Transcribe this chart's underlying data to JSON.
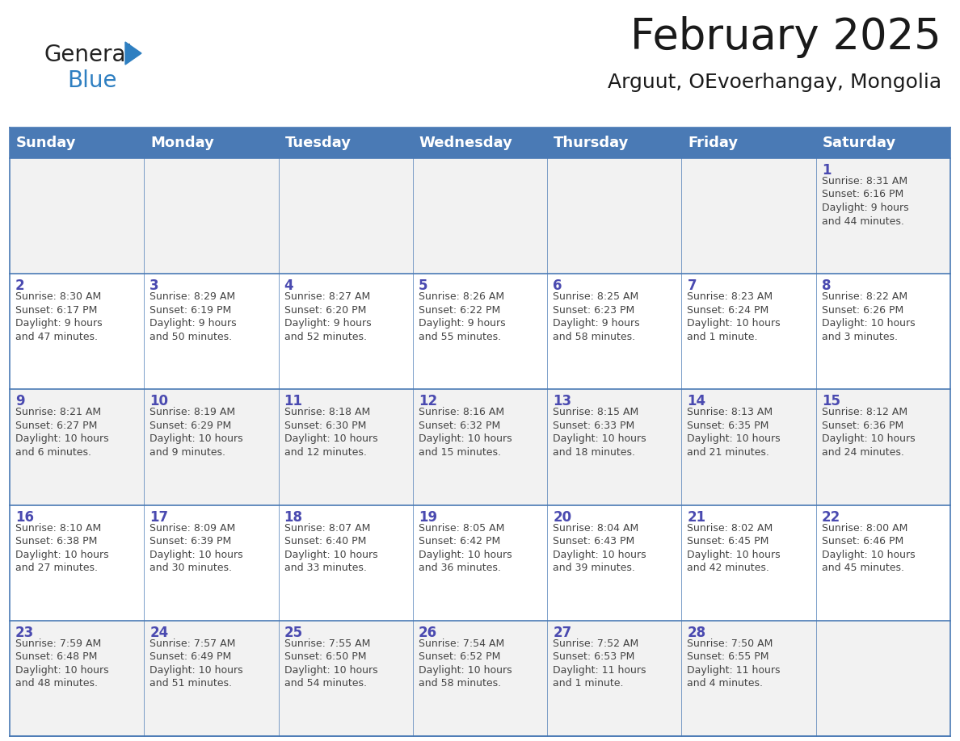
{
  "title": "February 2025",
  "subtitle": "Arguut, OEvoerhangay, Mongolia",
  "header_color": "#4a7ab5",
  "header_text_color": "#ffffff",
  "weekdays": [
    "Sunday",
    "Monday",
    "Tuesday",
    "Wednesday",
    "Thursday",
    "Friday",
    "Saturday"
  ],
  "days": [
    {
      "day": 1,
      "col": 6,
      "row": 0,
      "sunrise": "8:31 AM",
      "sunset": "6:16 PM",
      "daylight": "9 hours and 44 minutes."
    },
    {
      "day": 2,
      "col": 0,
      "row": 1,
      "sunrise": "8:30 AM",
      "sunset": "6:17 PM",
      "daylight": "9 hours and 47 minutes."
    },
    {
      "day": 3,
      "col": 1,
      "row": 1,
      "sunrise": "8:29 AM",
      "sunset": "6:19 PM",
      "daylight": "9 hours and 50 minutes."
    },
    {
      "day": 4,
      "col": 2,
      "row": 1,
      "sunrise": "8:27 AM",
      "sunset": "6:20 PM",
      "daylight": "9 hours and 52 minutes."
    },
    {
      "day": 5,
      "col": 3,
      "row": 1,
      "sunrise": "8:26 AM",
      "sunset": "6:22 PM",
      "daylight": "9 hours and 55 minutes."
    },
    {
      "day": 6,
      "col": 4,
      "row": 1,
      "sunrise": "8:25 AM",
      "sunset": "6:23 PM",
      "daylight": "9 hours and 58 minutes."
    },
    {
      "day": 7,
      "col": 5,
      "row": 1,
      "sunrise": "8:23 AM",
      "sunset": "6:24 PM",
      "daylight": "10 hours and 1 minute."
    },
    {
      "day": 8,
      "col": 6,
      "row": 1,
      "sunrise": "8:22 AM",
      "sunset": "6:26 PM",
      "daylight": "10 hours and 3 minutes."
    },
    {
      "day": 9,
      "col": 0,
      "row": 2,
      "sunrise": "8:21 AM",
      "sunset": "6:27 PM",
      "daylight": "10 hours and 6 minutes."
    },
    {
      "day": 10,
      "col": 1,
      "row": 2,
      "sunrise": "8:19 AM",
      "sunset": "6:29 PM",
      "daylight": "10 hours and 9 minutes."
    },
    {
      "day": 11,
      "col": 2,
      "row": 2,
      "sunrise": "8:18 AM",
      "sunset": "6:30 PM",
      "daylight": "10 hours and 12 minutes."
    },
    {
      "day": 12,
      "col": 3,
      "row": 2,
      "sunrise": "8:16 AM",
      "sunset": "6:32 PM",
      "daylight": "10 hours and 15 minutes."
    },
    {
      "day": 13,
      "col": 4,
      "row": 2,
      "sunrise": "8:15 AM",
      "sunset": "6:33 PM",
      "daylight": "10 hours and 18 minutes."
    },
    {
      "day": 14,
      "col": 5,
      "row": 2,
      "sunrise": "8:13 AM",
      "sunset": "6:35 PM",
      "daylight": "10 hours and 21 minutes."
    },
    {
      "day": 15,
      "col": 6,
      "row": 2,
      "sunrise": "8:12 AM",
      "sunset": "6:36 PM",
      "daylight": "10 hours and 24 minutes."
    },
    {
      "day": 16,
      "col": 0,
      "row": 3,
      "sunrise": "8:10 AM",
      "sunset": "6:38 PM",
      "daylight": "10 hours and 27 minutes."
    },
    {
      "day": 17,
      "col": 1,
      "row": 3,
      "sunrise": "8:09 AM",
      "sunset": "6:39 PM",
      "daylight": "10 hours and 30 minutes."
    },
    {
      "day": 18,
      "col": 2,
      "row": 3,
      "sunrise": "8:07 AM",
      "sunset": "6:40 PM",
      "daylight": "10 hours and 33 minutes."
    },
    {
      "day": 19,
      "col": 3,
      "row": 3,
      "sunrise": "8:05 AM",
      "sunset": "6:42 PM",
      "daylight": "10 hours and 36 minutes."
    },
    {
      "day": 20,
      "col": 4,
      "row": 3,
      "sunrise": "8:04 AM",
      "sunset": "6:43 PM",
      "daylight": "10 hours and 39 minutes."
    },
    {
      "day": 21,
      "col": 5,
      "row": 3,
      "sunrise": "8:02 AM",
      "sunset": "6:45 PM",
      "daylight": "10 hours and 42 minutes."
    },
    {
      "day": 22,
      "col": 6,
      "row": 3,
      "sunrise": "8:00 AM",
      "sunset": "6:46 PM",
      "daylight": "10 hours and 45 minutes."
    },
    {
      "day": 23,
      "col": 0,
      "row": 4,
      "sunrise": "7:59 AM",
      "sunset": "6:48 PM",
      "daylight": "10 hours and 48 minutes."
    },
    {
      "day": 24,
      "col": 1,
      "row": 4,
      "sunrise": "7:57 AM",
      "sunset": "6:49 PM",
      "daylight": "10 hours and 51 minutes."
    },
    {
      "day": 25,
      "col": 2,
      "row": 4,
      "sunrise": "7:55 AM",
      "sunset": "6:50 PM",
      "daylight": "10 hours and 54 minutes."
    },
    {
      "day": 26,
      "col": 3,
      "row": 4,
      "sunrise": "7:54 AM",
      "sunset": "6:52 PM",
      "daylight": "10 hours and 58 minutes."
    },
    {
      "day": 27,
      "col": 4,
      "row": 4,
      "sunrise": "7:52 AM",
      "sunset": "6:53 PM",
      "daylight": "11 hours and 1 minute."
    },
    {
      "day": 28,
      "col": 5,
      "row": 4,
      "sunrise": "7:50 AM",
      "sunset": "6:55 PM",
      "daylight": "11 hours and 4 minutes."
    }
  ],
  "num_rows": 5,
  "cell_bg_row0": "#f2f2f2",
  "cell_bg_row1": "#ffffff",
  "cell_bg_row2": "#f2f2f2",
  "cell_bg_row3": "#ffffff",
  "cell_bg_row4": "#f2f2f2",
  "day_num_color": "#4a4ab0",
  "text_color": "#444444",
  "border_color": "#4a7ab5",
  "logo_general_color": "#222222",
  "logo_blue_color": "#2e7fc1",
  "title_fontsize": 38,
  "subtitle_fontsize": 18,
  "header_fontsize": 13,
  "day_num_fontsize": 12,
  "cell_text_fontsize": 9
}
